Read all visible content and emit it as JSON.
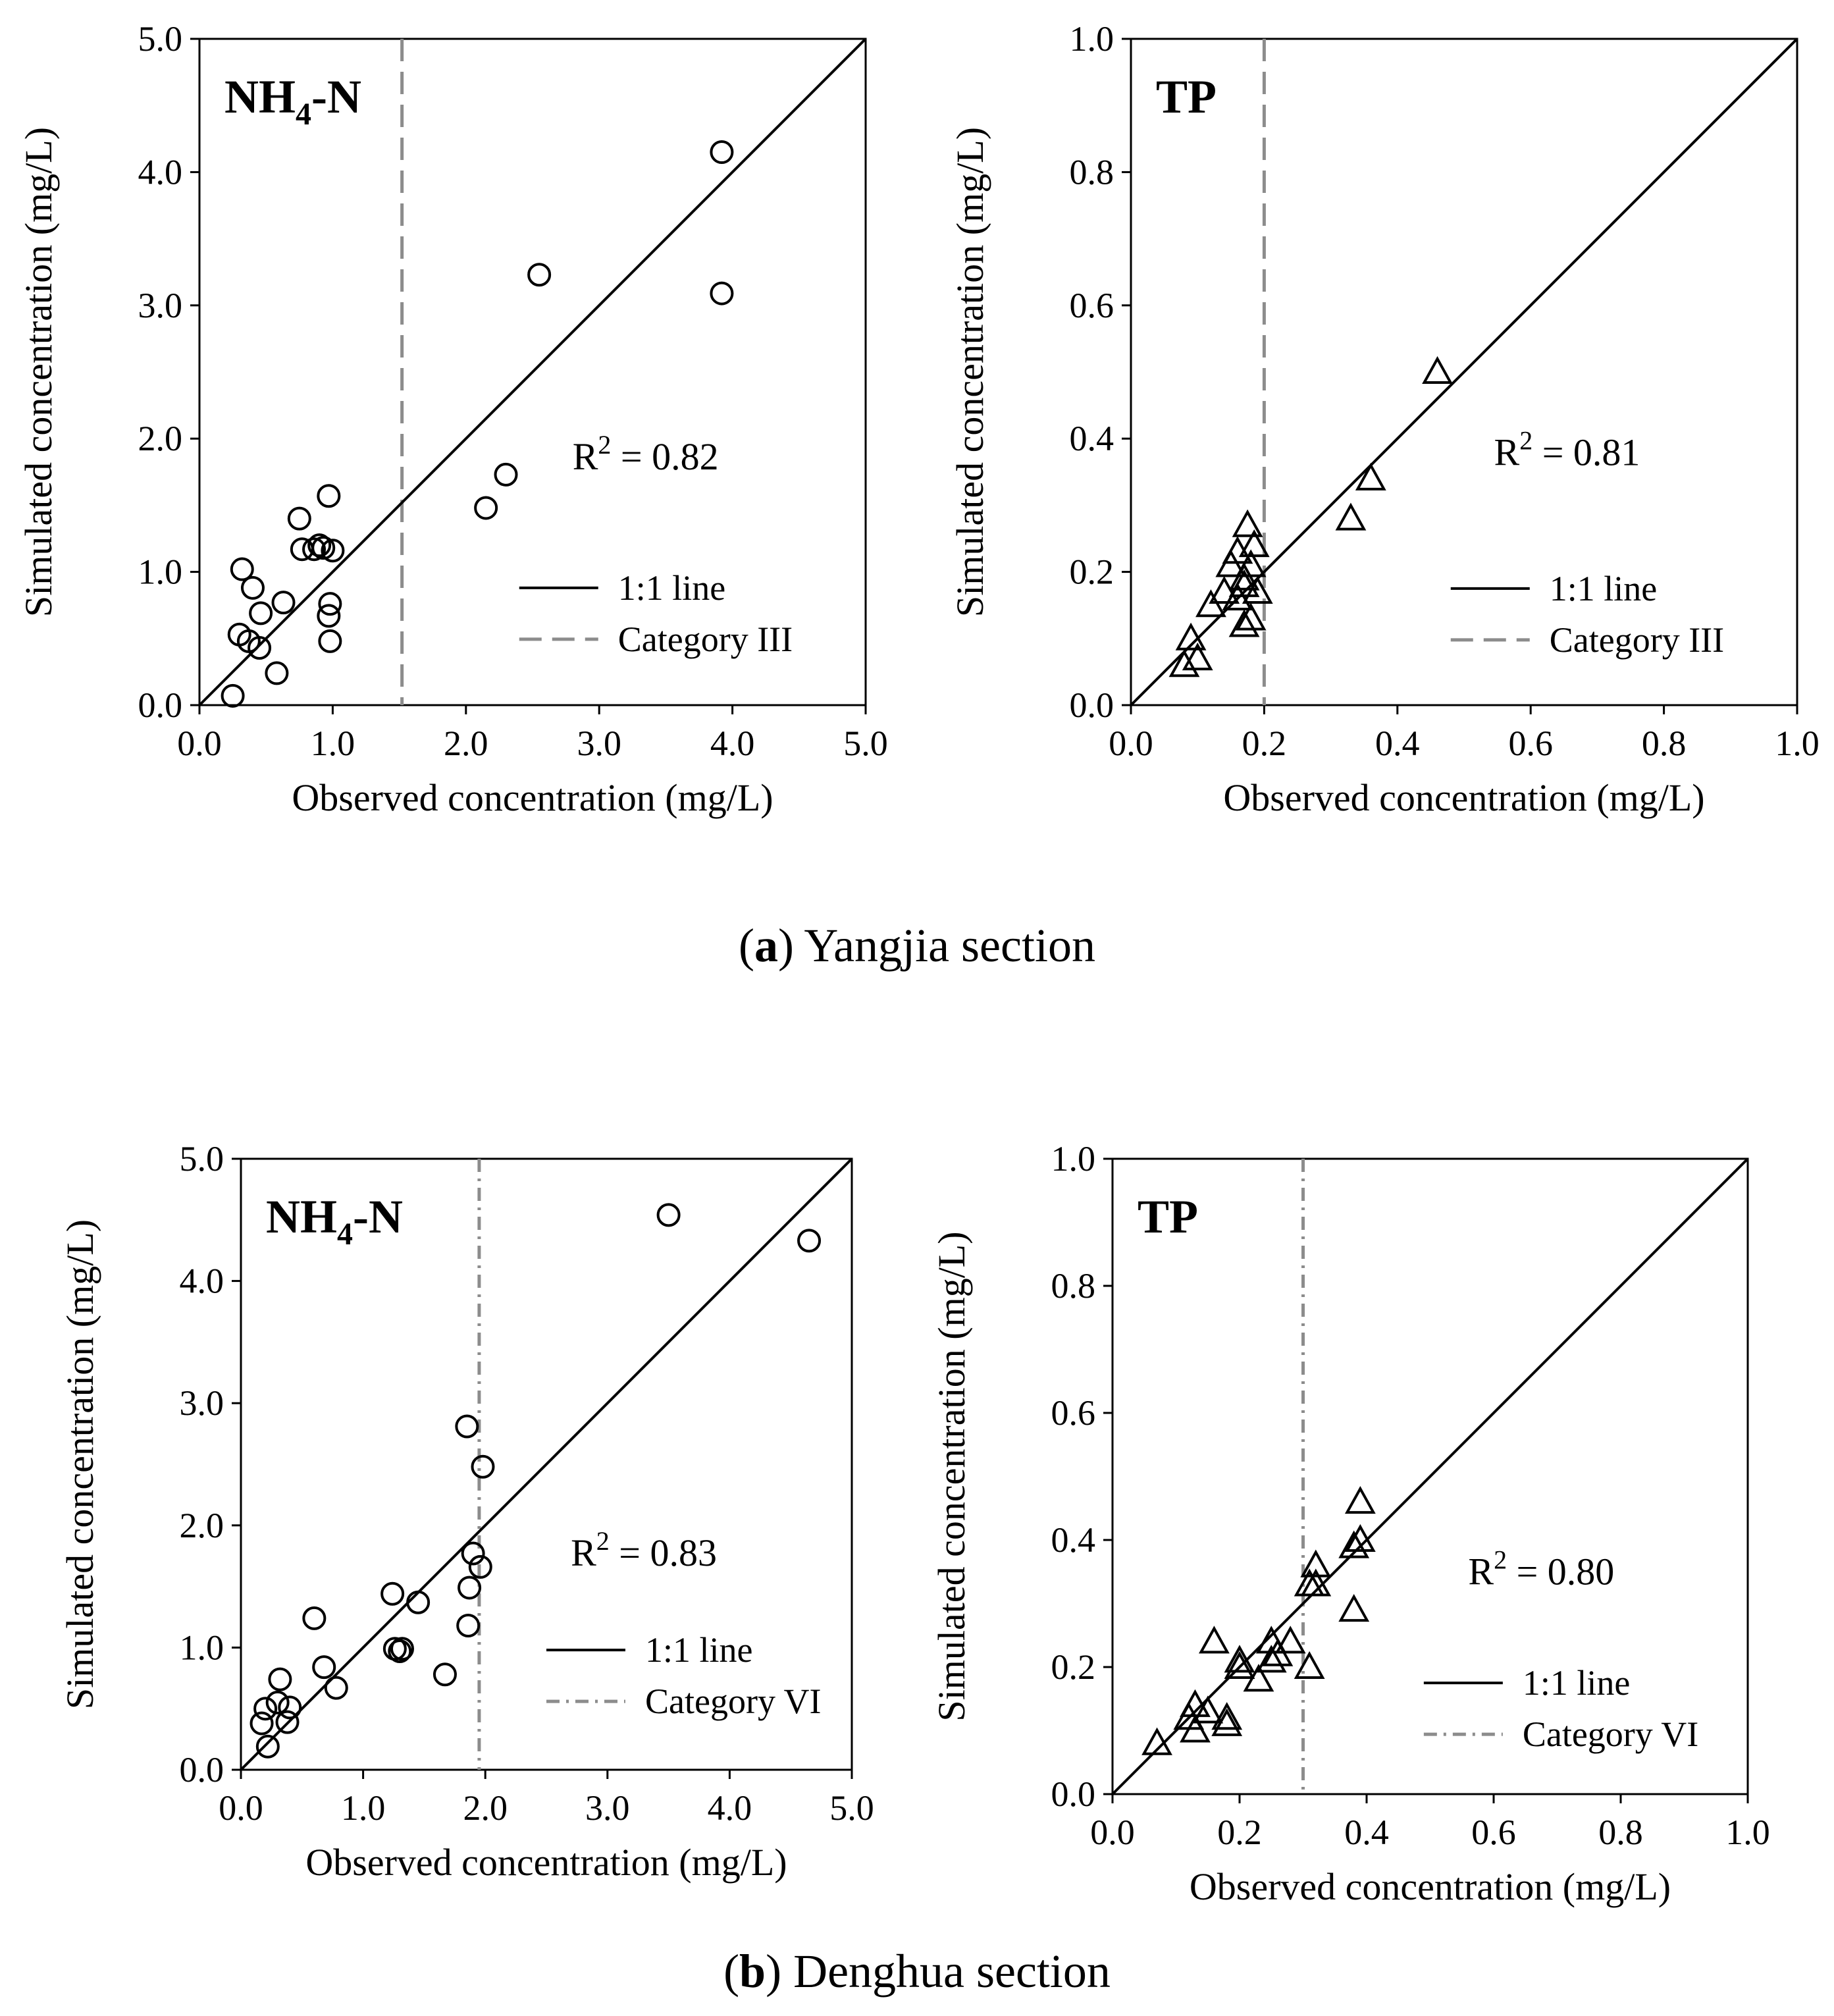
{
  "figure": {
    "captions": [
      {
        "letter": "a",
        "open": "(",
        "close": ")",
        "text": " Yangjia section"
      },
      {
        "letter": "b",
        "open": "(",
        "close": ")",
        "text": " Denghua section"
      }
    ]
  },
  "chart_data": [
    {
      "type": "scatter",
      "panel": "Yangjia NH4-N",
      "species_main": "NH",
      "species_sub": "4",
      "species_tail": "-N",
      "xlabel": "Observed concentration (mg/L)",
      "ylabel": "Simulated concentration (mg/L)",
      "xlim": [
        0,
        5
      ],
      "ylim": [
        0,
        5
      ],
      "ticks": [
        "0.0",
        "1.0",
        "2.0",
        "3.0",
        "4.0",
        "5.0"
      ],
      "tick_values": [
        0,
        1,
        2,
        3,
        4,
        5
      ],
      "marker": "circle",
      "r2_label": "R",
      "r2_sup": "2",
      "r2_text": " = 0.82",
      "r2_pos": [
        2.8,
        1.77
      ],
      "legend": [
        {
          "label": "1:1 line",
          "style": "solid"
        },
        {
          "label": "Category III",
          "style": "dashed"
        }
      ],
      "legend_pos": [
        2.4,
        0.88
      ],
      "threshold": 1.52,
      "threshold_color": "#8c8c8c",
      "points": [
        [
          0.25,
          0.07
        ],
        [
          0.3,
          0.53
        ],
        [
          0.32,
          1.02
        ],
        [
          0.37,
          0.48
        ],
        [
          0.4,
          0.88
        ],
        [
          0.45,
          0.43
        ],
        [
          0.46,
          0.69
        ],
        [
          0.58,
          0.24
        ],
        [
          0.63,
          0.77
        ],
        [
          0.75,
          1.4
        ],
        [
          0.77,
          1.17
        ],
        [
          0.86,
          1.17
        ],
        [
          0.9,
          1.2
        ],
        [
          0.93,
          1.18
        ],
        [
          0.97,
          0.67
        ],
        [
          0.97,
          1.57
        ],
        [
          0.98,
          0.76
        ],
        [
          0.98,
          0.48
        ],
        [
          1.0,
          1.16
        ],
        [
          2.15,
          1.48
        ],
        [
          2.3,
          1.73
        ],
        [
          2.55,
          3.23
        ],
        [
          3.92,
          3.09
        ],
        [
          3.92,
          4.15
        ]
      ]
    },
    {
      "type": "scatter",
      "panel": "Yangjia TP",
      "species_main": "TP",
      "species_sub": "",
      "species_tail": "",
      "xlabel": "Observed concentration (mg/L)",
      "ylabel": "Simulated concentration (mg/L)",
      "xlim": [
        0,
        1
      ],
      "ylim": [
        0,
        1
      ],
      "ticks": [
        "0.0",
        "0.2",
        "0.4",
        "0.6",
        "0.8",
        "1.0"
      ],
      "tick_values": [
        0,
        0.2,
        0.4,
        0.6,
        0.8,
        1.0
      ],
      "marker": "triangle",
      "r2_label": "R",
      "r2_sup": "2",
      "r2_text": " = 0.81",
      "r2_pos": [
        0.545,
        0.36
      ],
      "legend": [
        {
          "label": "1:1 line",
          "style": "solid"
        },
        {
          "label": "Category III",
          "style": "dashed"
        }
      ],
      "legend_pos": [
        0.48,
        0.175
      ],
      "threshold": 0.2,
      "threshold_color": "#8c8c8c",
      "points": [
        [
          0.08,
          0.06
        ],
        [
          0.09,
          0.1
        ],
        [
          0.1,
          0.07
        ],
        [
          0.12,
          0.15
        ],
        [
          0.14,
          0.17
        ],
        [
          0.15,
          0.21
        ],
        [
          0.16,
          0.16
        ],
        [
          0.16,
          0.23
        ],
        [
          0.17,
          0.18
        ],
        [
          0.17,
          0.12
        ],
        [
          0.17,
          0.19
        ],
        [
          0.175,
          0.27
        ],
        [
          0.18,
          0.21
        ],
        [
          0.18,
          0.13
        ],
        [
          0.185,
          0.24
        ],
        [
          0.19,
          0.17
        ],
        [
          0.33,
          0.28
        ],
        [
          0.36,
          0.34
        ],
        [
          0.46,
          0.5
        ]
      ]
    },
    {
      "type": "scatter",
      "panel": "Denghua NH4-N",
      "species_main": "NH",
      "species_sub": "4",
      "species_tail": "-N",
      "xlabel": "Observed concentration (mg/L)",
      "ylabel": "Simulated concentration (mg/L)",
      "xlim": [
        0,
        5
      ],
      "ylim": [
        0,
        5
      ],
      "ticks": [
        "0.0",
        "1.0",
        "2.0",
        "3.0",
        "4.0",
        "5.0"
      ],
      "tick_values": [
        0,
        1,
        2,
        3,
        4,
        5
      ],
      "marker": "circle",
      "r2_label": "R",
      "r2_sup": "2",
      "r2_text": " = 0.83",
      "r2_pos": [
        2.7,
        1.67
      ],
      "legend": [
        {
          "label": "1:1 line",
          "style": "solid"
        },
        {
          "label": "Category VI",
          "style": "dashdot"
        }
      ],
      "legend_pos": [
        2.5,
        0.98
      ],
      "threshold": 1.95,
      "threshold_color": "#8c8c8c",
      "points": [
        [
          0.17,
          0.38
        ],
        [
          0.2,
          0.5
        ],
        [
          0.22,
          0.19
        ],
        [
          0.3,
          0.55
        ],
        [
          0.32,
          0.74
        ],
        [
          0.38,
          0.39
        ],
        [
          0.4,
          0.51
        ],
        [
          0.6,
          1.24
        ],
        [
          0.68,
          0.84
        ],
        [
          0.78,
          0.67
        ],
        [
          1.24,
          1.44
        ],
        [
          1.26,
          0.99
        ],
        [
          1.3,
          0.97
        ],
        [
          1.32,
          0.99
        ],
        [
          1.45,
          1.37
        ],
        [
          1.67,
          0.78
        ],
        [
          1.85,
          2.81
        ],
        [
          1.86,
          1.18
        ],
        [
          1.87,
          1.49
        ],
        [
          1.9,
          1.77
        ],
        [
          1.96,
          1.66
        ],
        [
          1.98,
          2.48
        ],
        [
          3.5,
          4.54
        ],
        [
          4.65,
          4.33
        ]
      ]
    },
    {
      "type": "scatter",
      "panel": "Denghua TP",
      "species_main": "TP",
      "species_sub": "",
      "species_tail": "",
      "xlabel": "Observed concentration (mg/L)",
      "ylabel": "Simulated concentration (mg/L)",
      "xlim": [
        0,
        1
      ],
      "ylim": [
        0,
        1
      ],
      "ticks": [
        "0.0",
        "0.2",
        "0.4",
        "0.6",
        "0.8",
        "1.0"
      ],
      "tick_values": [
        0,
        0.2,
        0.4,
        0.6,
        0.8,
        1.0
      ],
      "marker": "triangle",
      "r2_label": "R",
      "r2_sup": "2",
      "r2_text": " = 0.80",
      "r2_pos": [
        0.56,
        0.33
      ],
      "legend": [
        {
          "label": "1:1 line",
          "style": "solid"
        },
        {
          "label": "Category VI",
          "style": "dashdot"
        }
      ],
      "legend_pos": [
        0.49,
        0.175
      ],
      "threshold": 0.3,
      "threshold_color": "#8c8c8c",
      "points": [
        [
          0.07,
          0.08
        ],
        [
          0.12,
          0.12
        ],
        [
          0.13,
          0.1
        ],
        [
          0.13,
          0.14
        ],
        [
          0.15,
          0.13
        ],
        [
          0.16,
          0.24
        ],
        [
          0.18,
          0.12
        ],
        [
          0.18,
          0.11
        ],
        [
          0.2,
          0.2
        ],
        [
          0.2,
          0.21
        ],
        [
          0.23,
          0.18
        ],
        [
          0.25,
          0.24
        ],
        [
          0.25,
          0.21
        ],
        [
          0.26,
          0.22
        ],
        [
          0.28,
          0.24
        ],
        [
          0.31,
          0.2
        ],
        [
          0.31,
          0.33
        ],
        [
          0.32,
          0.36
        ],
        [
          0.32,
          0.33
        ],
        [
          0.38,
          0.29
        ],
        [
          0.38,
          0.39
        ],
        [
          0.39,
          0.46
        ],
        [
          0.39,
          0.4
        ]
      ]
    }
  ]
}
